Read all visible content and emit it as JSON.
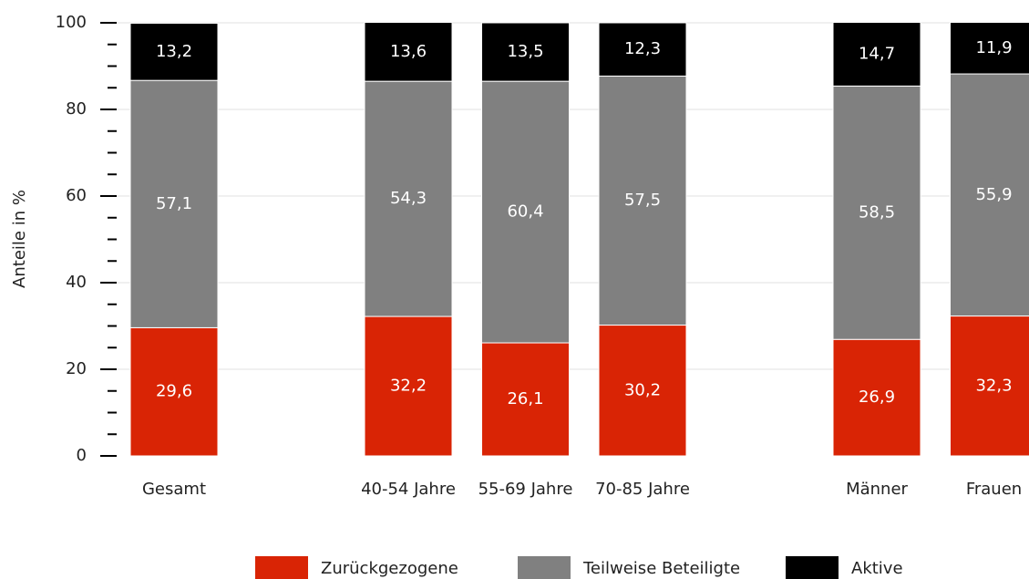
{
  "chart_data": {
    "type": "stacked_bar",
    "ylabel": "Anteile in %",
    "categories": [
      "Gesamt",
      null,
      "40-54 Jahre",
      "55-69 Jahre",
      "70-85 Jahre",
      null,
      "Männer",
      "Frauen"
    ],
    "series": [
      {
        "name": "Zurückgezogene",
        "color": "#d92405",
        "values": [
          29.6,
          null,
          32.2,
          26.1,
          30.2,
          null,
          26.9,
          32.3
        ],
        "value_labels": [
          "29,6",
          null,
          "32,2",
          "26,1",
          "30,2",
          null,
          "26,9",
          "32,3"
        ]
      },
      {
        "name": "Teilweise Beteiligte",
        "color": "#808080",
        "values": [
          57.1,
          null,
          54.3,
          60.4,
          57.5,
          null,
          58.5,
          55.9
        ],
        "value_labels": [
          "57,1",
          null,
          "54,3",
          "60,4",
          "57,5",
          null,
          "58,5",
          "55,9"
        ]
      },
      {
        "name": "Aktive",
        "color": "#000000",
        "values": [
          13.2,
          null,
          13.6,
          13.5,
          12.3,
          null,
          14.7,
          11.9
        ],
        "value_labels": [
          "13,2",
          null,
          "13,6",
          "13,5",
          "12,3",
          null,
          "14,7",
          "11,9"
        ]
      }
    ],
    "ylim": [
      0,
      100
    ],
    "yticks": [
      0,
      20,
      40,
      60,
      80,
      100
    ],
    "grid": true
  }
}
